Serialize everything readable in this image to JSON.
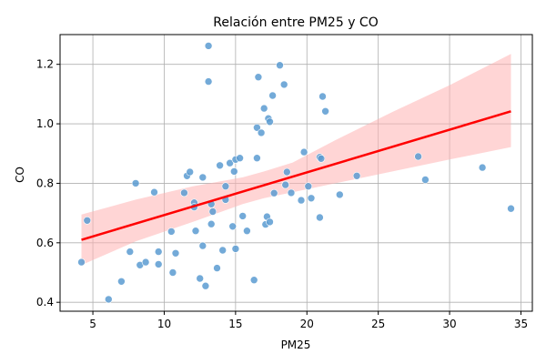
{
  "chart_data": {
    "type": "scatter",
    "title": "Relación entre PM25 y CO",
    "xlabel": "PM25",
    "ylabel": "CO",
    "xlim": [
      2.7,
      35.8
    ],
    "ylim": [
      0.37,
      1.3
    ],
    "xticks": [
      5,
      10,
      15,
      20,
      25,
      30,
      35
    ],
    "yticks": [
      0.4,
      0.6,
      0.8,
      1.0,
      1.2
    ],
    "xtick_labels": [
      "5",
      "10",
      "15",
      "20",
      "25",
      "30",
      "35"
    ],
    "ytick_labels": [
      "0.4",
      "0.6",
      "0.8",
      "1.0",
      "1.2"
    ],
    "grid": true,
    "colors": {
      "points": "#5b9bd1",
      "fit_line": "#ff0000",
      "ci_band": "#ffb3b3"
    },
    "points": [
      [
        4.2,
        0.535
      ],
      [
        4.6,
        0.675
      ],
      [
        6.1,
        0.41
      ],
      [
        7.0,
        0.47
      ],
      [
        7.6,
        0.57
      ],
      [
        8.0,
        0.8
      ],
      [
        8.3,
        0.525
      ],
      [
        8.7,
        0.535
      ],
      [
        9.3,
        0.77
      ],
      [
        9.6,
        0.57
      ],
      [
        9.6,
        0.528
      ],
      [
        10.5,
        0.638
      ],
      [
        10.6,
        0.5
      ],
      [
        10.8,
        0.565
      ],
      [
        11.4,
        0.768
      ],
      [
        11.6,
        0.825
      ],
      [
        11.8,
        0.838
      ],
      [
        12.1,
        0.735
      ],
      [
        12.1,
        0.72
      ],
      [
        12.2,
        0.64
      ],
      [
        12.5,
        0.48
      ],
      [
        12.7,
        0.59
      ],
      [
        12.7,
        0.82
      ],
      [
        12.9,
        0.455
      ],
      [
        13.1,
        1.262
      ],
      [
        13.1,
        1.142
      ],
      [
        13.3,
        0.73
      ],
      [
        13.3,
        0.663
      ],
      [
        13.4,
        0.705
      ],
      [
        13.7,
        0.515
      ],
      [
        13.9,
        0.86
      ],
      [
        14.1,
        0.575
      ],
      [
        14.3,
        0.745
      ],
      [
        14.3,
        0.79
      ],
      [
        14.6,
        0.868
      ],
      [
        14.8,
        0.655
      ],
      [
        14.9,
        0.84
      ],
      [
        15.0,
        0.58
      ],
      [
        15.0,
        0.88
      ],
      [
        15.3,
        0.885
      ],
      [
        15.5,
        0.69
      ],
      [
        15.8,
        0.64
      ],
      [
        16.3,
        0.475
      ],
      [
        16.5,
        0.885
      ],
      [
        16.5,
        0.987
      ],
      [
        16.6,
        1.157
      ],
      [
        16.8,
        0.97
      ],
      [
        17.0,
        1.052
      ],
      [
        17.1,
        0.662
      ],
      [
        17.2,
        0.688
      ],
      [
        17.3,
        1.018
      ],
      [
        17.4,
        0.67
      ],
      [
        17.4,
        1.007
      ],
      [
        17.6,
        1.095
      ],
      [
        17.7,
        0.767
      ],
      [
        18.1,
        1.197
      ],
      [
        18.4,
        1.132
      ],
      [
        18.5,
        0.795
      ],
      [
        18.6,
        0.838
      ],
      [
        18.9,
        0.768
      ],
      [
        19.6,
        0.743
      ],
      [
        19.8,
        0.905
      ],
      [
        20.1,
        0.79
      ],
      [
        20.3,
        0.75
      ],
      [
        20.9,
        0.685
      ],
      [
        20.9,
        0.888
      ],
      [
        21.0,
        0.883
      ],
      [
        21.1,
        1.092
      ],
      [
        21.3,
        1.042
      ],
      [
        22.3,
        0.762
      ],
      [
        23.5,
        0.825
      ],
      [
        27.8,
        0.89
      ],
      [
        28.3,
        0.812
      ],
      [
        32.3,
        0.853
      ],
      [
        34.3,
        0.715
      ]
    ],
    "fit_line": {
      "x": [
        4.2,
        34.3
      ],
      "y": [
        0.61,
        1.042
      ]
    },
    "ci_band": {
      "x": [
        4.2,
        8,
        12,
        15.5,
        17,
        19,
        22,
        26,
        30,
        34.3
      ],
      "upper": [
        0.695,
        0.745,
        0.79,
        0.82,
        0.84,
        0.87,
        0.945,
        1.04,
        1.13,
        1.235
      ],
      "lower": [
        0.525,
        0.605,
        0.67,
        0.73,
        0.75,
        0.77,
        0.8,
        0.84,
        0.88,
        0.922
      ]
    }
  }
}
